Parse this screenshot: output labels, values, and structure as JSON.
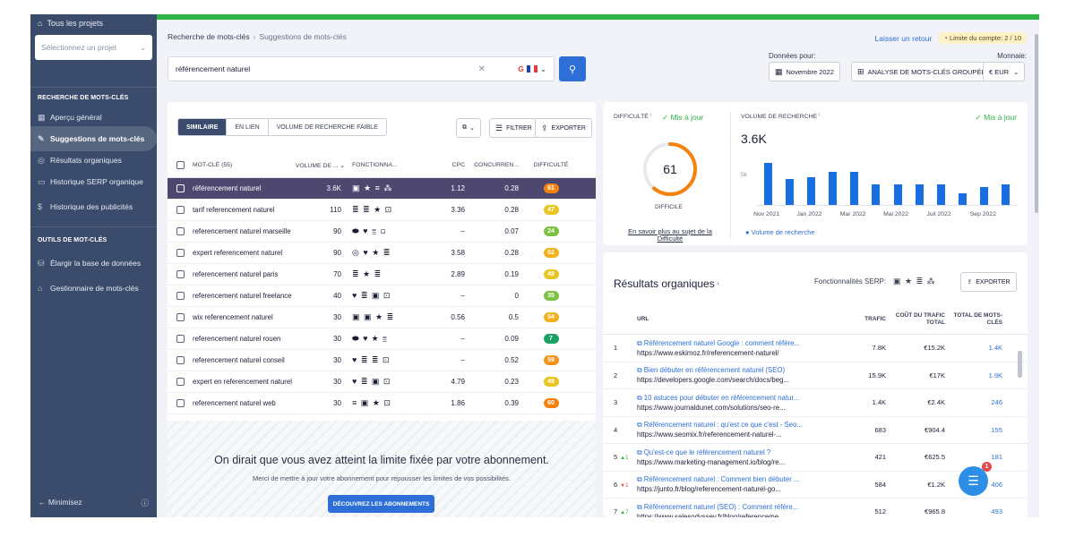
{
  "sidebar": {
    "all_projects": "Tous les projets",
    "project_placeholder": "Sélectionnez un projet",
    "section_keyword_research": "RECHERCHE DE MOTS-CLÉS",
    "items_research": [
      {
        "label": "Aperçu général",
        "icon": "grid-icon"
      },
      {
        "label": "Suggestions de mots-clés",
        "icon": "pencil-icon",
        "active": true
      },
      {
        "label": "Résultats organiques",
        "icon": "target-icon"
      },
      {
        "label": "Historique SERP organique",
        "icon": "calendar-icon"
      },
      {
        "label": "Historique des publicités",
        "icon": "dollar-icon"
      }
    ],
    "section_keyword_tools": "OUTILS DE MOT-CLÉS",
    "items_tools": [
      {
        "label": "Élargir la base de données",
        "icon": "database-icon"
      },
      {
        "label": "Gestionnaire de mots-clés",
        "icon": "bank-icon"
      }
    ],
    "minimize": "Minimisez"
  },
  "breadcrumb": {
    "root": "Recherche de mots-clés",
    "current": "Suggestions de mots-clés"
  },
  "header": {
    "feedback_link": "Laisser un retour",
    "limit_label": "Limite du compte: 2 / 10",
    "search_value": "référencement naturel",
    "data_for_label": "Données pour:",
    "month_btn": "Novembre 2022",
    "bulk_btn": "ANALYSE DE MOTS-CLÉS GROUPÉE",
    "currency_label": "Monnaie:",
    "currency_btn": "€ EUR"
  },
  "keywords": {
    "tabs": [
      "SIMILAIRE",
      "EN LIEN",
      "VOLUME DE RECHERCHE FAIBLE"
    ],
    "filter_btn": "FILTRER",
    "export_btn": "EXPORTER",
    "columns": {
      "keyword": "MOT-CLÉ (55)",
      "volume": "VOLUME DE ...",
      "features": "FONCTIONNA...",
      "cpc": "CPC",
      "competition": "CONCURREN...",
      "difficulty": "DIFFICULTÉ"
    },
    "rows": [
      {
        "kw": "référencement naturel",
        "vol": "3.6K",
        "feat": "▣ ★ ≡ ⁂",
        "cpc": "1.12",
        "conc": "0.28",
        "diff": "61",
        "color": "#f5820d",
        "selected": true
      },
      {
        "kw": "tarif referencement naturel",
        "vol": "110",
        "feat": "≣ ≣ ★ ⊡",
        "cpc": "3.36",
        "conc": "0.28",
        "diff": "47",
        "color": "#e8c520"
      },
      {
        "kw": "referencement naturel marseille",
        "vol": "90",
        "feat": "⬬ ♥ ≣ ⊡",
        "cpc": "–",
        "conc": "0.07",
        "diff": "24",
        "color": "#7cc242"
      },
      {
        "kw": "expert referencement naturel",
        "vol": "90",
        "feat": "◎ ♥ ★ ≣",
        "cpc": "3.58",
        "conc": "0.28",
        "diff": "52",
        "color": "#f3b21c"
      },
      {
        "kw": "referencement naturel paris",
        "vol": "70",
        "feat": "≣ ★ ≣",
        "cpc": "2.89",
        "conc": "0.19",
        "diff": "48",
        "color": "#e8c520"
      },
      {
        "kw": "referencement naturel freelance",
        "vol": "40",
        "feat": "♥ ≣ ▣ ⊡",
        "cpc": "–",
        "conc": "0",
        "diff": "35",
        "color": "#7cc242"
      },
      {
        "kw": "wix referencement naturel",
        "vol": "30",
        "feat": "▣ ▣ ★ ≣",
        "cpc": "0.56",
        "conc": "0.5",
        "diff": "54",
        "color": "#f3b21c"
      },
      {
        "kw": "referencement naturel rouen",
        "vol": "30",
        "feat": "⬬ ♥ ★ ≣",
        "cpc": "–",
        "conc": "0.09",
        "diff": "7",
        "color": "#1aa260"
      },
      {
        "kw": "referencement naturel conseil",
        "vol": "30",
        "feat": "♥ ≣ ≣ ⊡",
        "cpc": "–",
        "conc": "0.52",
        "diff": "59",
        "color": "#f3941c"
      },
      {
        "kw": "expert en referencement naturel",
        "vol": "30",
        "feat": "♥ ≣ ▣ ⊡",
        "cpc": "4.79",
        "conc": "0.23",
        "diff": "49",
        "color": "#e8c520"
      },
      {
        "kw": "referencement naturel web",
        "vol": "30",
        "feat": "≡ ▣ ★ ⊡",
        "cpc": "1.86",
        "conc": "0.39",
        "diff": "60",
        "color": "#f5820d"
      }
    ],
    "limit_title": "On dirait que vous avez atteint la limite fixée par votre abonnement.",
    "limit_sub": "Merci de mettre à jour votre abonnement pour repousser les limites de vos possibilités.",
    "limit_btn": "DÉCOUVREZ LES ABONNEMENTS"
  },
  "difficulty": {
    "title": "DIFFICULTÉ",
    "status": "Mis à jour",
    "value": "61",
    "level": 0.61,
    "label": "DIFFICILE",
    "link": "En savoir plus au sujet de la Difficulté",
    "color": "#f5820d"
  },
  "volume": {
    "title": "VOLUME DE RECHERCHE",
    "status": "Mis à jour",
    "value": "3.6K",
    "y_tick": "5k",
    "legend": "Volume de recherche",
    "color": "#1a6fe0"
  },
  "chart_data": {
    "type": "bar",
    "categories": [
      "Nov 2021",
      "Dec 2021",
      "Jan 2022",
      "Feb 2022",
      "Mar 2022",
      "Apr 2022",
      "Mai 2022",
      "Jun 2022",
      "Juil 2022",
      "Aug 2022",
      "Sep 2022",
      "Oct 2022"
    ],
    "x_tick_labels": [
      "Nov 2021",
      "Jan 2022",
      "Mar 2022",
      "Mai 2022",
      "Juil 2022",
      "Sep 2022"
    ],
    "values": [
      6800,
      4200,
      4500,
      5300,
      5300,
      3300,
      3300,
      3300,
      3300,
      1900,
      2900,
      3300
    ],
    "ylim": [
      0,
      7500
    ],
    "legend": "Volume de recherche"
  },
  "organic": {
    "title": "Résultats organiques",
    "serp_label": "Fonctionnalités SERP:",
    "serp_icons": "▣ ★ ≣ ⁂",
    "export_btn": "EXPORTER",
    "columns": {
      "url": "URL",
      "traffic": "TRAFIC",
      "cost": "COÛT DU TRAFIC TOTAL",
      "total": "TOTAL DE MOTS-CLÉS"
    },
    "rows": [
      {
        "pos": "1",
        "change": "",
        "dir": "",
        "title": "Référencement naturel Google : comment référe...",
        "url": "https://www.eskimoz.fr/referencement-naturel/",
        "traffic": "7.8K",
        "cost": "€15.2K",
        "total": "1.4K"
      },
      {
        "pos": "2",
        "change": "",
        "dir": "",
        "title": "Bien débuter en référencement naturel (SEO)",
        "url": "https://developers.google.com/search/docs/beg...",
        "traffic": "15.9K",
        "cost": "€17K",
        "total": "1.9K"
      },
      {
        "pos": "3",
        "change": "",
        "dir": "",
        "title": "10 astuces pour débuter en référencement natur...",
        "url": "https://www.journaldunet.com/solutions/seo-re...",
        "traffic": "1.4K",
        "cost": "€2.4K",
        "total": "246"
      },
      {
        "pos": "4",
        "change": "",
        "dir": "",
        "title": "Référencement naturel : qu'est ce que c'est - Seo...",
        "url": "https://www.seomix.fr/referencement-naturel-...",
        "traffic": "683",
        "cost": "€904.4",
        "total": "155"
      },
      {
        "pos": "5",
        "change": "▲1",
        "dir": "up",
        "title": "Qu'est-ce que le référencement naturel ?",
        "url": "https://www.marketing-management.io/blog/re...",
        "traffic": "421",
        "cost": "€625.5",
        "total": "181"
      },
      {
        "pos": "6",
        "change": "▼1",
        "dir": "dn",
        "title": "Référencement naturel : Comment bien débuter ...",
        "url": "https://junto.fr/blog/referencement-naturel-go...",
        "traffic": "584",
        "cost": "€1.2K",
        "total": "406"
      },
      {
        "pos": "7",
        "change": "▲7",
        "dir": "up",
        "title": "Référencement naturel (SEO) : Comment référe...",
        "url": "https://www.salesodyssey.fr/blog/referenceme...",
        "traffic": "512",
        "cost": "€965.8",
        "total": "493"
      }
    ]
  },
  "chat": {
    "badge": "1"
  }
}
